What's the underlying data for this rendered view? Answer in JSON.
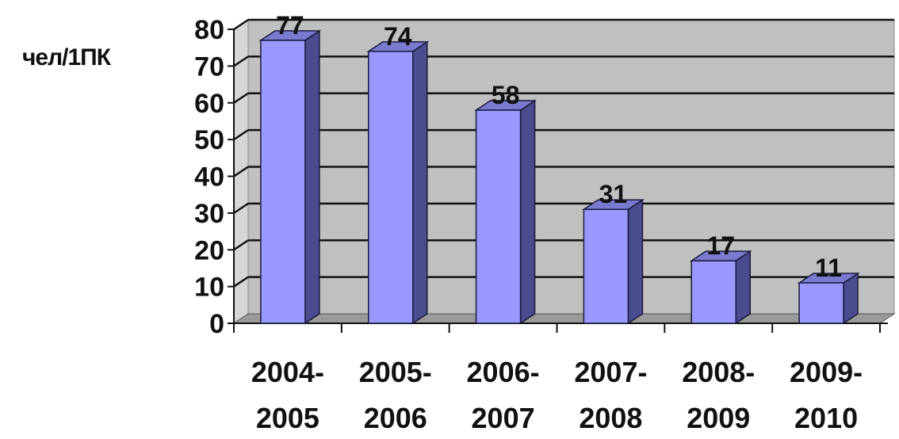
{
  "chart_data": {
    "type": "bar",
    "ylabel": "чел/1ПК",
    "xlabel": "",
    "title": "",
    "categories": [
      [
        "2004-",
        "2005"
      ],
      [
        "2005-",
        "2006"
      ],
      [
        "2006-",
        "2007"
      ],
      [
        "2007-",
        "2008"
      ],
      [
        "2008-",
        "2009"
      ],
      [
        "2009-",
        "2010"
      ]
    ],
    "values": [
      77,
      74,
      58,
      31,
      17,
      11
    ],
    "ylim": [
      0,
      80
    ],
    "yticks": [
      0,
      10,
      20,
      30,
      40,
      50,
      60,
      70,
      80
    ],
    "grid": true,
    "three_d": true,
    "data_labels": true,
    "legend": "none",
    "colors": {
      "bar_front": "#9999ff",
      "bar_side": "#4b4b8f",
      "bar_top": "#7a7ad0",
      "bar_outline": "#1a1a3a",
      "wall": "#c0c0c0",
      "floor": "#9a9a9a",
      "grid": "#111111",
      "text": "#111111"
    }
  }
}
